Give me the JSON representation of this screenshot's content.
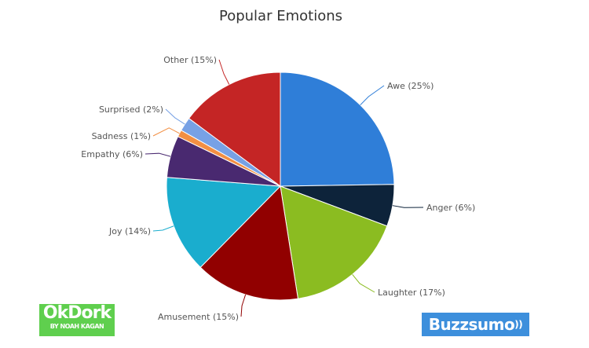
{
  "chart_data": {
    "type": "pie",
    "title": "Popular Emotions",
    "start": "top",
    "direction": "clockwise",
    "slices": [
      {
        "label": "Awe (25%)",
        "name": "Awe",
        "value": 25,
        "color": "#2f7ed8"
      },
      {
        "label": "Anger (6%)",
        "name": "Anger",
        "value": 6,
        "color": "#0d233a"
      },
      {
        "label": "Laughter (17%)",
        "name": "Laughter",
        "value": 17,
        "color": "#8bbc21"
      },
      {
        "label": "Amusement (15%)",
        "name": "Amusement",
        "value": 15,
        "color": "#910000"
      },
      {
        "label": "Joy (14%)",
        "name": "Joy",
        "value": 14,
        "color": "#1aadce"
      },
      {
        "label": "Empathy (6%)",
        "name": "Empathy",
        "value": 6,
        "color": "#492970"
      },
      {
        "label": "Sadness (1%)",
        "name": "Sadness",
        "value": 1,
        "color": "#f28f43"
      },
      {
        "label": "Surprised (2%)",
        "name": "Surprised",
        "value": 2,
        "color": "#77a1e5"
      },
      {
        "label": "Other (15%)",
        "name": "Other",
        "value": 15,
        "color": "#c42525"
      }
    ]
  },
  "logos": {
    "okdork": {
      "text": "OkDork",
      "subtext": "BY NOAH KAGAN",
      "color": "#5fcf4e"
    },
    "buzzsumo": {
      "text": "Buzzsumo",
      "color": "#3d8fdc"
    }
  }
}
